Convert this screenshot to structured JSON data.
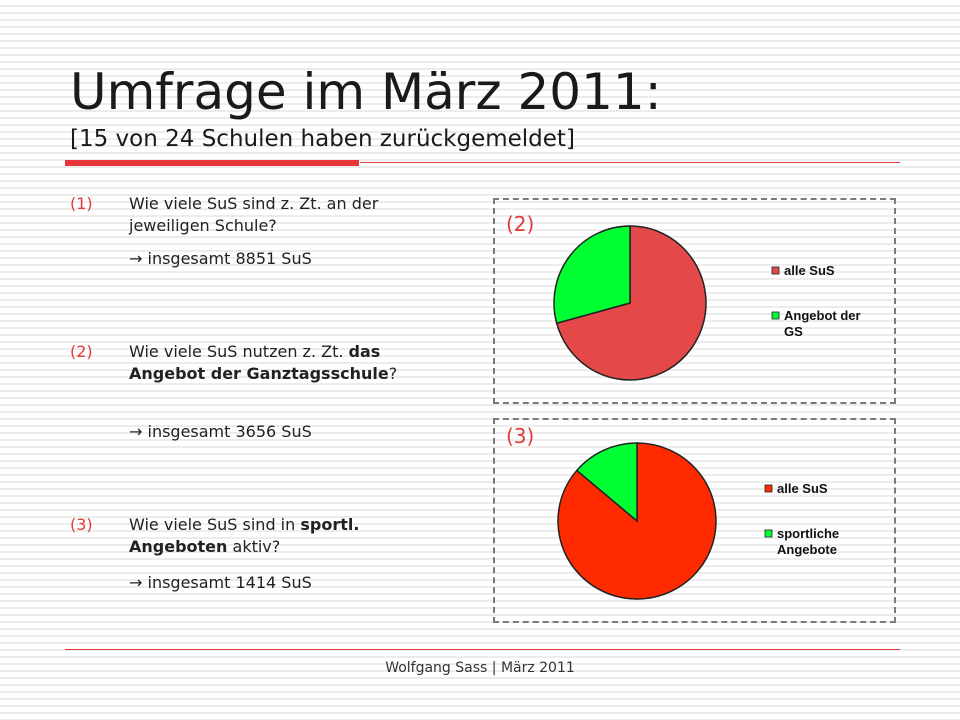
{
  "title": "Umfrage im März 2011:",
  "subtitle": "[15 von 24 Schulen haben zurückgemeldet]",
  "questions": [
    {
      "num": "(1)",
      "text_a": "Wie viele SuS sind z. Zt. an der jeweiligen Schule?",
      "answer": " insgesamt 8851 SuS"
    },
    {
      "num": "(2)",
      "text_a": "Wie viele SuS nutzen z. Zt. ",
      "text_bold": "das Angebot der Ganztagsschule",
      "text_b": "?",
      "answer": " insgesamt 3656 SuS"
    },
    {
      "num": "(3)",
      "text_a": "Wie viele SuS sind in ",
      "text_bold": "sportl. Angeboten",
      "text_b": " aktiv?",
      "answer": " insgesamt 1414 SuS"
    }
  ],
  "arrow_icon": "arrow-right-icon",
  "footer": "Wolfgang Sass | März 2011",
  "colors": {
    "accent": "#e03a3a",
    "pie1_main": "#e54848",
    "pie2_main": "#ff2a00",
    "green": "#00ff33"
  },
  "chart_data": [
    {
      "type": "pie",
      "label": "(2)",
      "categories": [
        "alle SuS",
        "Angebot der GS"
      ],
      "values": [
        8851,
        3656
      ],
      "colors": [
        "#e54848",
        "#00ff33"
      ],
      "legend": "right"
    },
    {
      "type": "pie",
      "label": "(3)",
      "categories": [
        "alle SuS",
        "sportliche Angebote"
      ],
      "values": [
        8851,
        1414
      ],
      "colors": [
        "#ff2a00",
        "#00ff33"
      ],
      "legend": "right"
    }
  ]
}
